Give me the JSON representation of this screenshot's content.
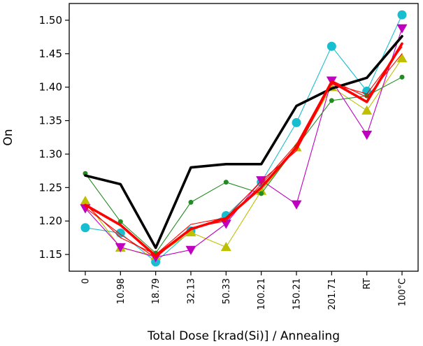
{
  "chart_data": {
    "type": "line",
    "title": "",
    "xlabel": "Total Dose [krad(Si)] / Annealing",
    "ylabel": "On",
    "categories": [
      "0",
      "10.98",
      "18.79",
      "32.13",
      "50.33",
      "100.21",
      "150.21",
      "201.71",
      "RT",
      "100°C"
    ],
    "ylim": [
      1.125,
      1.525
    ],
    "yticks": [
      "1.15",
      "1.20",
      "1.25",
      "1.30",
      "1.35",
      "1.40",
      "1.45",
      "1.50"
    ],
    "grid": false,
    "series": [
      {
        "color": "#17becf",
        "marker": "circle",
        "values": [
          1.19,
          1.182,
          1.139,
          1.185,
          1.208,
          1.258,
          1.347,
          1.461,
          1.394,
          1.508
        ]
      },
      {
        "color": "#bfbf00",
        "marker": "triangle-up",
        "values": [
          1.23,
          1.16,
          1.148,
          1.183,
          1.161,
          1.245,
          1.31,
          1.4,
          1.365,
          1.443
        ]
      },
      {
        "color": "#bf00bf",
        "marker": "triangle-down",
        "values": [
          1.219,
          1.161,
          1.146,
          1.157,
          1.196,
          1.261,
          1.225,
          1.41,
          1.329,
          1.488
        ]
      },
      {
        "color": "#228b22",
        "marker": "dot",
        "values": [
          1.271,
          1.199,
          1.152,
          1.228,
          1.258,
          1.241,
          1.311,
          1.38,
          1.387,
          1.415
        ]
      },
      {
        "color": "#ff0000",
        "marker": "none",
        "values": [
          1.22,
          1.18,
          1.145,
          1.19,
          1.2,
          1.255,
          1.315,
          1.41,
          1.385,
          1.45
        ]
      },
      {
        "color": "#ff0000",
        "marker": "none",
        "values": [
          1.225,
          1.175,
          1.15,
          1.195,
          1.205,
          1.26,
          1.305,
          1.405,
          1.39,
          1.46
        ]
      },
      {
        "color": "#000000",
        "marker": "none",
        "emphasis": "thick",
        "values": [
          1.268,
          1.255,
          1.16,
          1.28,
          1.285,
          1.285,
          1.372,
          1.398,
          1.414,
          1.476
        ]
      },
      {
        "color": "#ff0000",
        "marker": "none",
        "emphasis": "thick",
        "values": [
          1.224,
          1.194,
          1.148,
          1.188,
          1.204,
          1.25,
          1.31,
          1.408,
          1.378,
          1.465
        ]
      }
    ]
  }
}
